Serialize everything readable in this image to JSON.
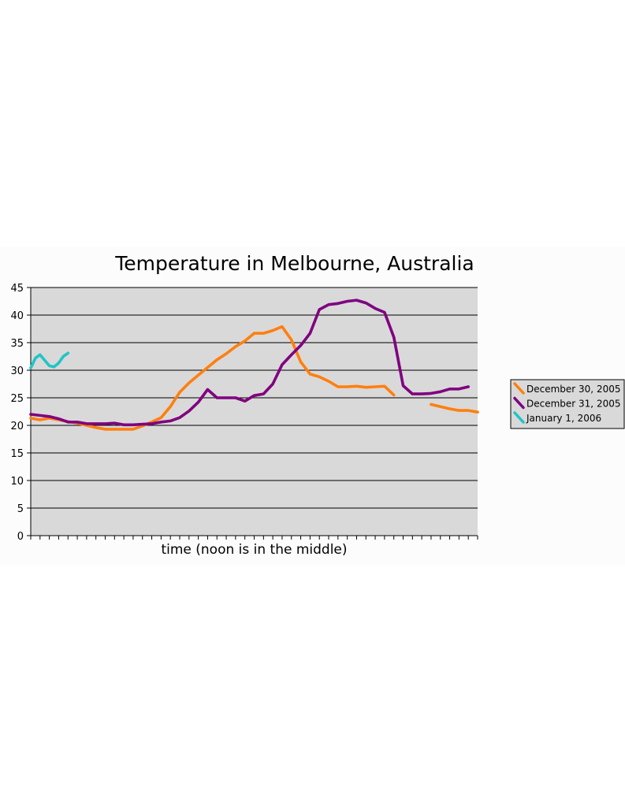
{
  "chart_data": {
    "type": "line",
    "title": "Temperature in Melbourne, Australia",
    "xlabel": "time (noon is in the middle)",
    "ylabel": "",
    "ylim": [
      0,
      45
    ],
    "yticks": [
      0,
      5,
      10,
      15,
      20,
      25,
      30,
      35,
      40,
      45
    ],
    "xlim": [
      0,
      48
    ],
    "grid": true,
    "legend_position": "right",
    "x_tick_count": 49,
    "colors": {
      "plot_background": "#d9d9d9",
      "grid": "#000000"
    },
    "series": [
      {
        "name": "December 30, 2005",
        "color": "#ff7f0e",
        "points": [
          [
            0,
            21.3
          ],
          [
            1,
            21.0
          ],
          [
            2,
            21.3
          ],
          [
            3,
            21.0
          ],
          [
            4,
            20.7
          ],
          [
            5,
            20.4
          ],
          [
            6,
            20.0
          ],
          [
            7,
            19.6
          ],
          [
            8,
            19.3
          ],
          [
            9,
            19.3
          ],
          [
            10,
            19.3
          ],
          [
            11,
            19.3
          ],
          [
            12,
            19.9
          ],
          [
            13,
            20.6
          ],
          [
            14,
            21.4
          ],
          [
            15,
            23.4
          ],
          [
            16,
            26.0
          ],
          [
            17,
            27.7
          ],
          [
            18,
            29.1
          ],
          [
            19,
            30.5
          ],
          [
            20,
            31.9
          ],
          [
            21,
            33.0
          ],
          [
            22,
            34.3
          ],
          [
            23,
            35.3
          ],
          [
            24,
            36.7
          ],
          [
            25,
            36.7
          ],
          [
            26,
            37.2
          ],
          [
            27,
            37.9
          ],
          [
            28,
            35.5
          ],
          [
            29,
            31.5
          ],
          [
            30,
            29.3
          ],
          [
            31,
            28.8
          ],
          [
            32,
            28.0
          ],
          [
            33,
            27.0
          ],
          [
            34,
            27.0
          ],
          [
            35,
            27.1
          ],
          [
            36,
            26.9
          ],
          [
            37,
            27.0
          ],
          [
            38,
            27.1
          ],
          [
            39,
            25.5
          ],
          null,
          [
            43,
            23.8
          ],
          [
            44,
            23.4
          ],
          [
            45,
            23.0
          ],
          [
            46,
            22.7
          ],
          [
            47,
            22.7
          ],
          [
            48,
            22.4
          ]
        ]
      },
      {
        "name": "December 31, 2005",
        "color": "#800080",
        "points": [
          [
            0,
            22.0
          ],
          [
            1,
            21.8
          ],
          [
            2,
            21.6
          ],
          [
            3,
            21.2
          ],
          [
            4,
            20.6
          ],
          [
            5,
            20.6
          ],
          [
            6,
            20.3
          ],
          [
            7,
            20.3
          ],
          [
            8,
            20.3
          ],
          [
            9,
            20.4
          ],
          [
            10,
            20.1
          ],
          [
            11,
            20.1
          ],
          [
            12,
            20.2
          ],
          [
            13,
            20.3
          ],
          [
            14,
            20.6
          ],
          [
            15,
            20.8
          ],
          [
            16,
            21.4
          ],
          [
            17,
            22.6
          ],
          [
            18,
            24.2
          ],
          [
            19,
            26.5
          ],
          [
            20,
            25.0
          ],
          [
            21,
            25.0
          ],
          [
            22,
            25.0
          ],
          [
            23,
            24.4
          ],
          [
            24,
            25.4
          ],
          [
            25,
            25.7
          ],
          [
            26,
            27.5
          ],
          [
            27,
            31.0
          ],
          [
            28,
            32.8
          ],
          [
            29,
            34.5
          ],
          [
            30,
            36.7
          ],
          [
            31,
            41.0
          ],
          [
            32,
            41.9
          ],
          [
            33,
            42.1
          ],
          [
            34,
            42.5
          ],
          [
            35,
            42.7
          ],
          [
            36,
            42.2
          ],
          [
            37,
            41.2
          ],
          [
            38,
            40.5
          ],
          [
            39,
            36.0
          ],
          [
            40,
            27.2
          ],
          [
            41,
            25.7
          ],
          [
            42,
            25.7
          ],
          [
            43,
            25.8
          ],
          [
            44,
            26.1
          ],
          [
            45,
            26.6
          ],
          [
            46,
            26.6
          ],
          [
            47,
            27.0
          ]
        ]
      },
      {
        "name": "January 1, 2006",
        "color": "#20c5c5",
        "points": [
          [
            0,
            30.4
          ],
          [
            0.5,
            32.2
          ],
          [
            1,
            32.8
          ],
          [
            1.5,
            31.8
          ],
          [
            2,
            30.8
          ],
          [
            2.5,
            30.6
          ],
          [
            3,
            31.3
          ],
          [
            3.5,
            32.5
          ],
          [
            4,
            33.1
          ]
        ]
      }
    ]
  }
}
